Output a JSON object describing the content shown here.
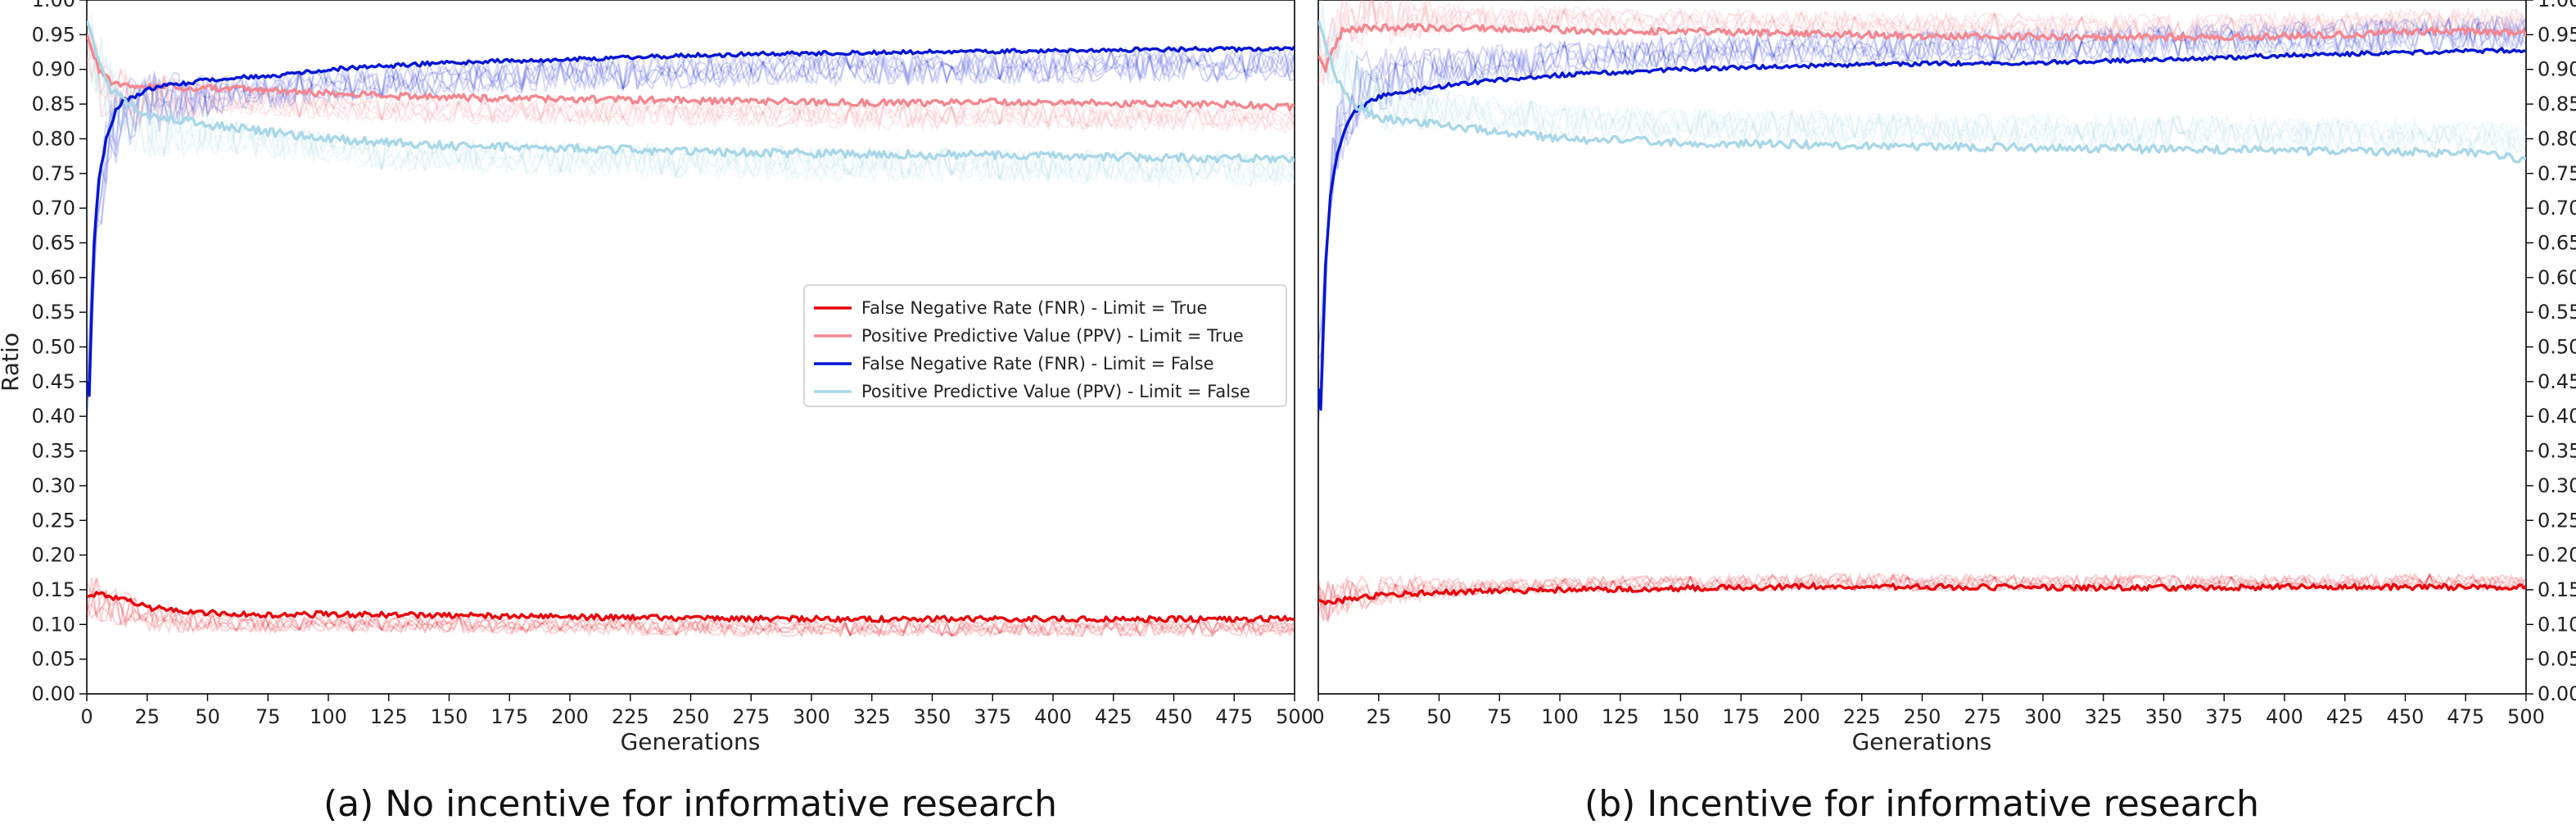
{
  "chart_data": [
    {
      "type": "line",
      "caption": "(a) No incentive for informative research",
      "xlabel": "Generations",
      "ylabel": "Ratio",
      "xlim": [
        0,
        500
      ],
      "ylim": [
        0,
        1.0
      ],
      "xticks": [
        "0",
        "25",
        "50",
        "75",
        "100",
        "125",
        "150",
        "175",
        "200",
        "225",
        "250",
        "275",
        "300",
        "325",
        "350",
        "375",
        "400",
        "425",
        "450",
        "475",
        "500"
      ],
      "yticks": [
        "0.00",
        "0.05",
        "0.10",
        "0.15",
        "0.20",
        "0.25",
        "0.30",
        "0.35",
        "0.40",
        "0.45",
        "0.50",
        "0.55",
        "0.60",
        "0.65",
        "0.70",
        "0.75",
        "0.80",
        "0.85",
        "0.90",
        "0.95",
        "1.00"
      ],
      "y_axis_side": "left",
      "legend": {
        "placement": "center-right"
      },
      "series": [
        {
          "name": "False Negative Rate (FNR) - Limit = True",
          "color": "#e8000b",
          "x": [
            0,
            5,
            10,
            15,
            20,
            25,
            35,
            50,
            75,
            100,
            125,
            150,
            175,
            200,
            225,
            250,
            275,
            300,
            325,
            350,
            375,
            400,
            425,
            450,
            475,
            500
          ],
          "y": [
            0.14,
            0.145,
            0.14,
            0.135,
            0.13,
            0.125,
            0.12,
            0.117,
            0.113,
            0.115,
            0.114,
            0.113,
            0.112,
            0.111,
            0.11,
            0.109,
            0.108,
            0.108,
            0.108,
            0.108,
            0.108,
            0.108,
            0.108,
            0.108,
            0.108,
            0.108
          ]
        },
        {
          "name": "Positive Predictive Value (PPV) - Limit = True",
          "color": "#f4868f",
          "x": [
            0,
            5,
            10,
            15,
            20,
            25,
            35,
            50,
            75,
            100,
            125,
            150,
            175,
            200,
            225,
            250,
            275,
            300,
            325,
            350,
            375,
            400,
            425,
            450,
            475,
            500
          ],
          "y": [
            0.95,
            0.9,
            0.88,
            0.875,
            0.875,
            0.875,
            0.875,
            0.873,
            0.87,
            0.865,
            0.862,
            0.86,
            0.858,
            0.857,
            0.856,
            0.855,
            0.854,
            0.853,
            0.852,
            0.852,
            0.853,
            0.852,
            0.851,
            0.85,
            0.849,
            0.845
          ]
        },
        {
          "name": "False Negative Rate (FNR) - Limit = False",
          "color": "#0015d4",
          "x": [
            0,
            1,
            2,
            3,
            5,
            8,
            12,
            15,
            20,
            25,
            30,
            40,
            50,
            60,
            75,
            100,
            125,
            150,
            175,
            200,
            225,
            250,
            275,
            300,
            325,
            350,
            375,
            400,
            425,
            450,
            475,
            500
          ],
          "y": [
            0.45,
            0.43,
            0.55,
            0.65,
            0.74,
            0.8,
            0.84,
            0.855,
            0.86,
            0.87,
            0.875,
            0.88,
            0.885,
            0.888,
            0.89,
            0.9,
            0.905,
            0.91,
            0.912,
            0.915,
            0.917,
            0.92,
            0.922,
            0.923,
            0.924,
            0.925,
            0.926,
            0.927,
            0.928,
            0.929,
            0.929,
            0.93
          ]
        },
        {
          "name": "Positive Predictive Value (PPV) - Limit = False",
          "color": "#a8d7e8",
          "x": [
            0,
            3,
            6,
            10,
            15,
            20,
            25,
            35,
            50,
            75,
            100,
            125,
            150,
            175,
            200,
            225,
            250,
            275,
            300,
            325,
            350,
            375,
            400,
            425,
            450,
            475,
            500
          ],
          "y": [
            0.97,
            0.94,
            0.9,
            0.87,
            0.855,
            0.845,
            0.835,
            0.83,
            0.82,
            0.81,
            0.8,
            0.795,
            0.79,
            0.788,
            0.786,
            0.784,
            0.782,
            0.78,
            0.779,
            0.778,
            0.777,
            0.776,
            0.775,
            0.774,
            0.773,
            0.772,
            0.77
          ]
        }
      ]
    },
    {
      "type": "line",
      "caption": "(b) Incentive for informative research",
      "xlabel": "Generations",
      "ylabel": "",
      "xlim": [
        0,
        500
      ],
      "ylim": [
        0,
        1.0
      ],
      "xticks": [
        "0",
        "25",
        "50",
        "75",
        "100",
        "125",
        "150",
        "175",
        "200",
        "225",
        "250",
        "275",
        "300",
        "325",
        "350",
        "375",
        "400",
        "425",
        "450",
        "475",
        "500"
      ],
      "yticks": [
        "0.00",
        "0.05",
        "0.10",
        "0.15",
        "0.20",
        "0.25",
        "0.30",
        "0.35",
        "0.40",
        "0.45",
        "0.50",
        "0.55",
        "0.60",
        "0.65",
        "0.70",
        "0.75",
        "0.80",
        "0.85",
        "0.90",
        "0.95",
        "1.00"
      ],
      "y_axis_side": "right",
      "series": [
        {
          "name": "False Negative Rate (FNR) - Limit = True",
          "color": "#e8000b",
          "x": [
            0,
            5,
            10,
            20,
            30,
            50,
            75,
            100,
            125,
            150,
            175,
            200,
            225,
            250,
            275,
            300,
            325,
            350,
            375,
            400,
            425,
            450,
            475,
            500
          ],
          "y": [
            0.135,
            0.13,
            0.135,
            0.14,
            0.143,
            0.146,
            0.148,
            0.15,
            0.151,
            0.152,
            0.153,
            0.155,
            0.155,
            0.154,
            0.154,
            0.153,
            0.153,
            0.153,
            0.153,
            0.154,
            0.154,
            0.154,
            0.154,
            0.153
          ]
        },
        {
          "name": "Positive Predictive Value (PPV) - Limit = True",
          "color": "#f4868f",
          "x": [
            0,
            3,
            6,
            10,
            20,
            30,
            50,
            75,
            100,
            125,
            150,
            175,
            200,
            225,
            250,
            275,
            300,
            325,
            350,
            375,
            400,
            425,
            450,
            475,
            500
          ],
          "y": [
            0.92,
            0.9,
            0.93,
            0.955,
            0.96,
            0.96,
            0.96,
            0.958,
            0.957,
            0.955,
            0.955,
            0.953,
            0.952,
            0.95,
            0.948,
            0.948,
            0.947,
            0.946,
            0.946,
            0.947,
            0.948,
            0.95,
            0.955,
            0.955,
            0.953
          ]
        },
        {
          "name": "False Negative Rate (FNR) - Limit = False",
          "color": "#0015d4",
          "x": [
            0,
            1,
            2,
            3,
            5,
            8,
            12,
            15,
            20,
            25,
            30,
            40,
            50,
            60,
            75,
            100,
            125,
            150,
            175,
            200,
            225,
            250,
            275,
            300,
            325,
            350,
            375,
            400,
            425,
            450,
            475,
            500
          ],
          "y": [
            0.44,
            0.41,
            0.52,
            0.62,
            0.72,
            0.78,
            0.82,
            0.84,
            0.85,
            0.86,
            0.865,
            0.87,
            0.875,
            0.88,
            0.885,
            0.892,
            0.896,
            0.9,
            0.903,
            0.905,
            0.907,
            0.908,
            0.909,
            0.91,
            0.912,
            0.914,
            0.917,
            0.92,
            0.922,
            0.924,
            0.926,
            0.928
          ]
        },
        {
          "name": "Positive Predictive Value (PPV) - Limit = False",
          "color": "#a8d7e8",
          "x": [
            0,
            3,
            6,
            10,
            15,
            20,
            25,
            35,
            50,
            75,
            100,
            125,
            150,
            175,
            200,
            225,
            250,
            275,
            300,
            325,
            350,
            375,
            400,
            425,
            450,
            475,
            500
          ],
          "y": [
            0.97,
            0.94,
            0.9,
            0.87,
            0.85,
            0.84,
            0.83,
            0.825,
            0.82,
            0.81,
            0.8,
            0.798,
            0.795,
            0.793,
            0.792,
            0.79,
            0.789,
            0.788,
            0.787,
            0.786,
            0.785,
            0.784,
            0.783,
            0.782,
            0.781,
            0.78,
            0.77
          ]
        }
      ]
    }
  ]
}
